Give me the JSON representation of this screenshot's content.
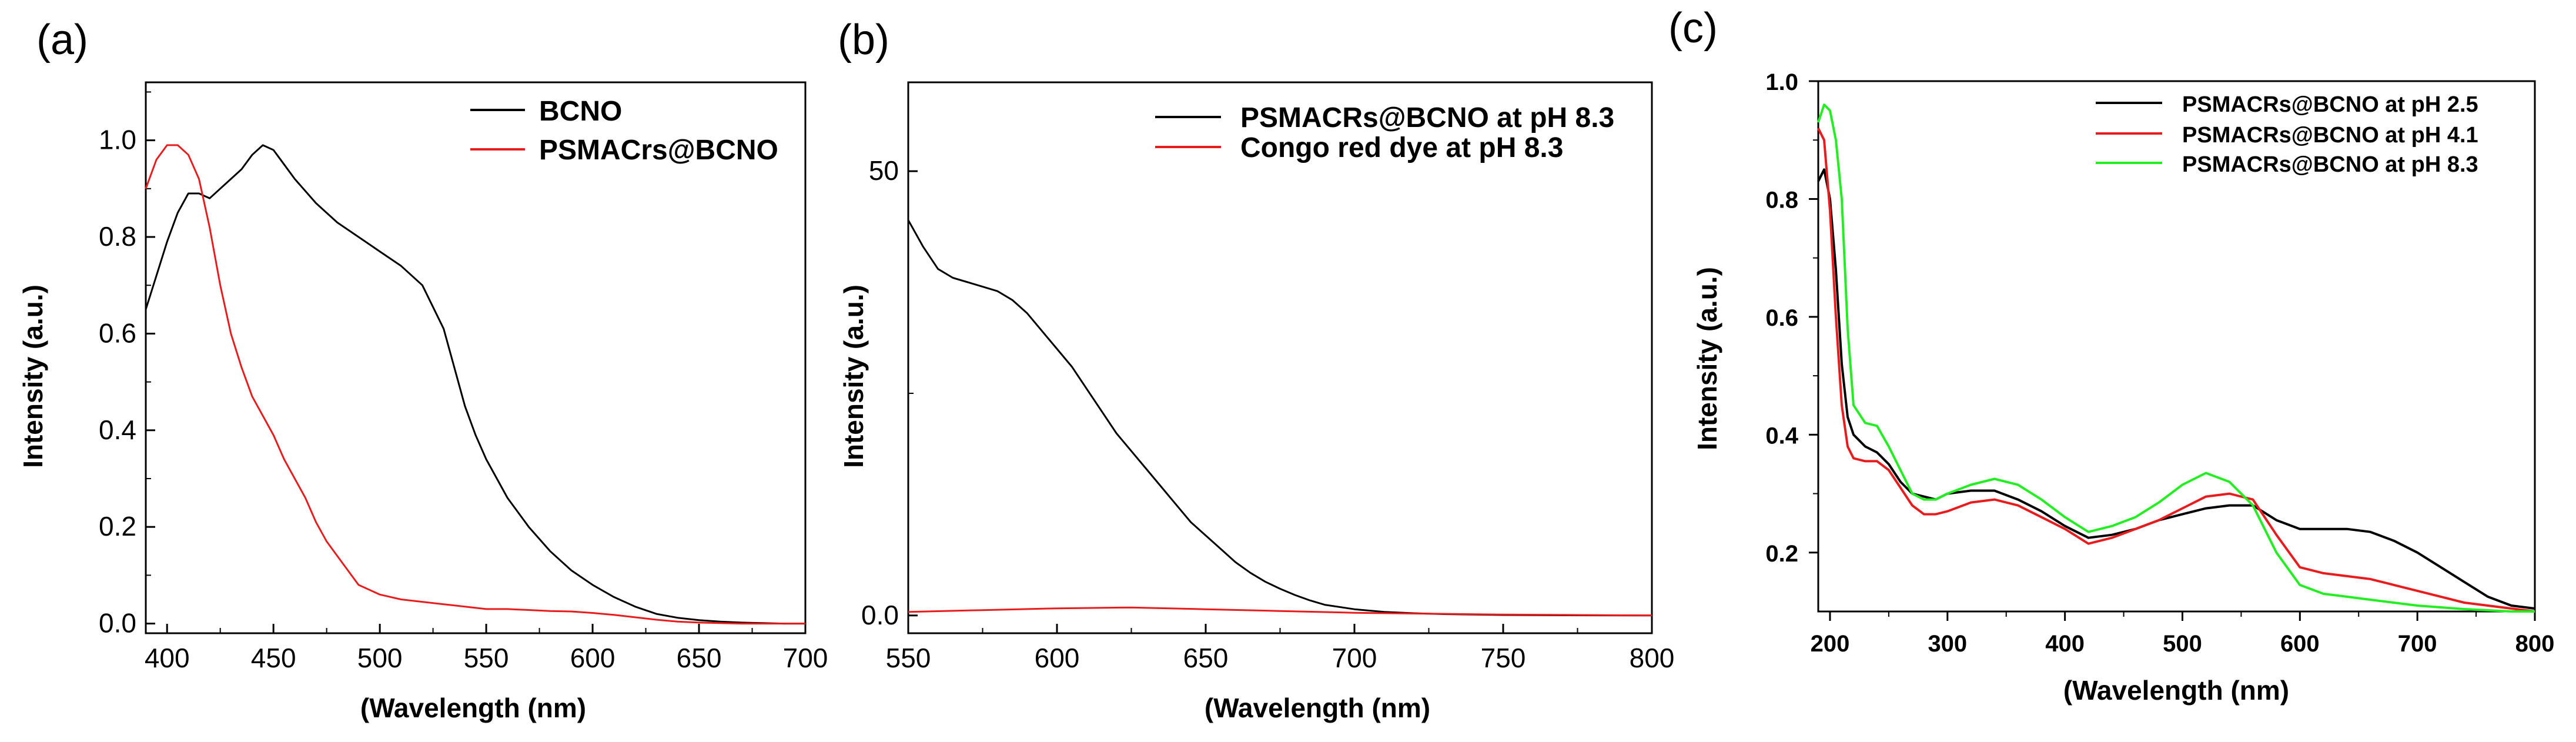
{
  "chart_data": [
    {
      "type": "line",
      "panel_label": "(a)",
      "xlabel": "(Wavelength (nm)",
      "ylabel": "Intensity (a.u.)",
      "xlim": [
        390,
        700
      ],
      "ylim": [
        -0.02,
        1.12
      ],
      "xticks": [
        400,
        450,
        500,
        550,
        600,
        650,
        700
      ],
      "yticks": [
        0.0,
        0.2,
        0.4,
        0.6,
        0.8,
        1.0
      ],
      "ytick_labels": [
        "0.0",
        "0.2",
        "0.4",
        "0.6",
        "0.8",
        "1.0"
      ],
      "legend_position": "top-right",
      "series": [
        {
          "name": "BCNO",
          "color": "#000000",
          "x": [
            390,
            395,
            400,
            405,
            410,
            415,
            420,
            425,
            430,
            435,
            440,
            445,
            450,
            455,
            460,
            470,
            480,
            490,
            500,
            510,
            520,
            530,
            535,
            540,
            545,
            550,
            560,
            570,
            580,
            590,
            600,
            610,
            620,
            630,
            640,
            650,
            660,
            670,
            680,
            690,
            700
          ],
          "y": [
            0.65,
            0.72,
            0.79,
            0.85,
            0.89,
            0.89,
            0.88,
            0.9,
            0.92,
            0.94,
            0.97,
            0.99,
            0.98,
            0.95,
            0.92,
            0.87,
            0.83,
            0.8,
            0.77,
            0.74,
            0.7,
            0.61,
            0.53,
            0.45,
            0.39,
            0.34,
            0.26,
            0.2,
            0.15,
            0.11,
            0.08,
            0.055,
            0.035,
            0.02,
            0.012,
            0.007,
            0.004,
            0.002,
            0.001,
            0.0,
            0.0
          ]
        },
        {
          "name": "PSMACrs@BCNO",
          "color": "#e81c1c",
          "x": [
            390,
            395,
            400,
            405,
            410,
            415,
            420,
            425,
            430,
            435,
            440,
            445,
            450,
            455,
            460,
            465,
            470,
            475,
            480,
            485,
            490,
            500,
            510,
            520,
            530,
            540,
            550,
            560,
            570,
            580,
            590,
            600,
            610,
            620,
            630,
            640,
            650,
            660,
            670,
            680,
            690,
            700
          ],
          "y": [
            0.9,
            0.96,
            0.99,
            0.99,
            0.97,
            0.92,
            0.82,
            0.7,
            0.6,
            0.53,
            0.47,
            0.43,
            0.39,
            0.34,
            0.3,
            0.26,
            0.21,
            0.17,
            0.14,
            0.11,
            0.08,
            0.06,
            0.05,
            0.045,
            0.04,
            0.035,
            0.03,
            0.03,
            0.028,
            0.026,
            0.025,
            0.022,
            0.018,
            0.013,
            0.008,
            0.004,
            0.002,
            0.001,
            0.0,
            0.0,
            0.0,
            0.0
          ]
        }
      ]
    },
    {
      "type": "line",
      "panel_label": "(b)",
      "xlabel": "(Wavelength (nm)",
      "ylabel": "Intensity (a.u.)",
      "xlim": [
        550,
        800
      ],
      "ylim": [
        -2,
        60
      ],
      "xticks": [
        550,
        600,
        650,
        700,
        750,
        800
      ],
      "yticks": [
        0,
        50
      ],
      "ytick_labels": [
        "0.0",
        "50"
      ],
      "legend_position": "top-right",
      "series": [
        {
          "name": "PSMACRs@BCNO at pH 8.3",
          "color": "#000000",
          "x": [
            550,
            555,
            560,
            565,
            570,
            575,
            580,
            585,
            590,
            595,
            600,
            605,
            610,
            615,
            620,
            625,
            630,
            635,
            640,
            645,
            650,
            655,
            660,
            665,
            670,
            675,
            680,
            685,
            690,
            700,
            710,
            720,
            730,
            740,
            750,
            760,
            770,
            780,
            790,
            800
          ],
          "y": [
            44.5,
            41.5,
            39.0,
            38.0,
            37.5,
            37.0,
            36.5,
            35.5,
            34.0,
            32.0,
            30.0,
            28.0,
            25.5,
            23.0,
            20.5,
            18.5,
            16.5,
            14.5,
            12.5,
            10.5,
            9.0,
            7.5,
            6.0,
            4.8,
            3.8,
            3.0,
            2.3,
            1.7,
            1.2,
            0.7,
            0.4,
            0.25,
            0.15,
            0.1,
            0.05,
            0.03,
            0.02,
            0.01,
            0.0,
            0.0
          ]
        },
        {
          "name": "Congo red dye at pH 8.3",
          "color": "#e81c1c",
          "x": [
            550,
            575,
            600,
            625,
            650,
            675,
            700,
            725,
            750,
            775,
            800
          ],
          "y": [
            0.4,
            0.6,
            0.8,
            0.9,
            0.7,
            0.5,
            0.3,
            0.2,
            0.1,
            0.05,
            0.0
          ]
        }
      ]
    },
    {
      "type": "line",
      "panel_label": "(c)",
      "xlabel": "(Wavelength (nm)",
      "ylabel": "Intensity (a.u.)",
      "xlim": [
        190,
        800
      ],
      "ylim": [
        0.1,
        1.0
      ],
      "xticks": [
        200,
        300,
        400,
        500,
        600,
        700,
        800
      ],
      "yticks": [
        0.2,
        0.4,
        0.6,
        0.8,
        1.0
      ],
      "ytick_labels": [
        "0.2",
        "0.4",
        "0.6",
        "0.8",
        "1.0"
      ],
      "legend_position": "top-right",
      "series": [
        {
          "name": "PSMACRs@BCNO at pH 2.5",
          "color": "#000000",
          "x": [
            190,
            195,
            200,
            205,
            210,
            215,
            220,
            230,
            240,
            250,
            260,
            270,
            280,
            290,
            300,
            320,
            340,
            360,
            380,
            400,
            420,
            440,
            460,
            480,
            500,
            520,
            540,
            560,
            580,
            600,
            620,
            640,
            660,
            680,
            700,
            720,
            740,
            760,
            780,
            800
          ],
          "y": [
            0.83,
            0.85,
            0.8,
            0.68,
            0.52,
            0.43,
            0.4,
            0.38,
            0.37,
            0.35,
            0.32,
            0.3,
            0.295,
            0.29,
            0.3,
            0.305,
            0.305,
            0.29,
            0.27,
            0.245,
            0.225,
            0.23,
            0.24,
            0.255,
            0.265,
            0.275,
            0.28,
            0.28,
            0.255,
            0.24,
            0.24,
            0.24,
            0.235,
            0.22,
            0.2,
            0.175,
            0.15,
            0.125,
            0.11,
            0.105
          ]
        },
        {
          "name": "PSMACRs@BCNO at pH 4.1",
          "color": "#e81c1c",
          "x": [
            190,
            195,
            200,
            205,
            210,
            215,
            220,
            230,
            240,
            250,
            260,
            270,
            280,
            290,
            300,
            320,
            340,
            360,
            380,
            400,
            420,
            440,
            460,
            480,
            500,
            520,
            540,
            560,
            580,
            600,
            620,
            640,
            660,
            680,
            700,
            720,
            740,
            760,
            780,
            800
          ],
          "y": [
            0.92,
            0.9,
            0.78,
            0.6,
            0.45,
            0.38,
            0.36,
            0.355,
            0.355,
            0.34,
            0.31,
            0.28,
            0.265,
            0.265,
            0.27,
            0.285,
            0.29,
            0.28,
            0.26,
            0.24,
            0.215,
            0.225,
            0.24,
            0.255,
            0.275,
            0.295,
            0.3,
            0.29,
            0.23,
            0.175,
            0.165,
            0.16,
            0.155,
            0.145,
            0.135,
            0.125,
            0.115,
            0.11,
            0.105,
            0.1
          ]
        },
        {
          "name": "PSMACRs@BCNO at pH 8.3",
          "color": "#22ee22",
          "x": [
            190,
            195,
            200,
            205,
            210,
            215,
            220,
            230,
            240,
            250,
            260,
            270,
            280,
            290,
            300,
            320,
            340,
            360,
            380,
            400,
            420,
            440,
            460,
            480,
            500,
            520,
            540,
            560,
            580,
            600,
            620,
            640,
            660,
            680,
            700,
            720,
            740,
            760,
            780,
            800
          ],
          "y": [
            0.93,
            0.96,
            0.95,
            0.9,
            0.8,
            0.58,
            0.45,
            0.42,
            0.415,
            0.38,
            0.34,
            0.3,
            0.29,
            0.29,
            0.3,
            0.315,
            0.325,
            0.315,
            0.29,
            0.26,
            0.235,
            0.245,
            0.26,
            0.285,
            0.315,
            0.335,
            0.32,
            0.28,
            0.2,
            0.145,
            0.13,
            0.125,
            0.12,
            0.115,
            0.11,
            0.107,
            0.104,
            0.102,
            0.1,
            0.1
          ]
        }
      ]
    }
  ]
}
